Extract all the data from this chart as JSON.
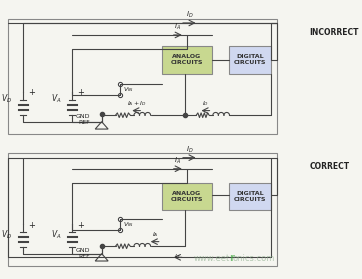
{
  "bg_color": "#f5f5f0",
  "border_color": "#888888",
  "analog_fill": "#c8d890",
  "digital_fill": "#d0d8f0",
  "text_color": "#222222",
  "line_color": "#444444",
  "arrow_color": "#444444",
  "incorrect_label": "INCORRECT",
  "correct_label": "CORRECT",
  "analog_label": "ANALOG\nCIRCUITS",
  "digital_label": "DIGITAL\nCIRCUITS",
  "gnd_label": "GND\nREF",
  "vd_label": "V_D",
  "va_label": "V_A",
  "vin_label": "V_IN",
  "id_label": "I_D",
  "ia_label": "I_A",
  "ia_id_label": "I_A + I_D"
}
